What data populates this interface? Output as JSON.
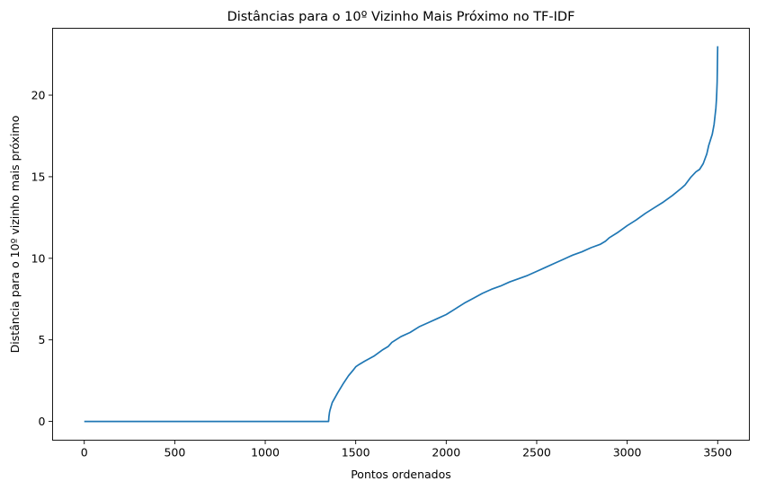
{
  "chart_data": {
    "type": "line",
    "title": "Distâncias para o 10º Vizinho Mais Próximo no TF-IDF",
    "xlabel": "Pontos ordenados",
    "ylabel": "Distância para o 10º vizinho mais próximo",
    "xlim": [
      -175,
      3675
    ],
    "ylim": [
      -1.15,
      24.1
    ],
    "xticks": [
      0,
      500,
      1000,
      1500,
      2000,
      2500,
      3000,
      3500
    ],
    "yticks": [
      0,
      5,
      10,
      15,
      20
    ],
    "grid": false,
    "series": [
      {
        "color": "#1f77b4",
        "x": [
          0,
          1350,
          1352,
          1355,
          1358,
          1362,
          1370,
          1380,
          1400,
          1430,
          1460,
          1490,
          1500,
          1520,
          1550,
          1600,
          1650,
          1680,
          1700,
          1750,
          1800,
          1850,
          1900,
          1950,
          2000,
          2050,
          2100,
          2150,
          2200,
          2250,
          2300,
          2350,
          2400,
          2450,
          2500,
          2550,
          2600,
          2650,
          2700,
          2750,
          2800,
          2850,
          2880,
          2900,
          2950,
          3000,
          3050,
          3100,
          3150,
          3200,
          3250,
          3300,
          3320,
          3350,
          3380,
          3400,
          3420,
          3440,
          3450,
          3460,
          3470,
          3480,
          3485,
          3490,
          3493,
          3495,
          3497,
          3498,
          3499,
          3500
        ],
        "y": [
          0,
          0,
          0.3,
          0.55,
          0.7,
          0.85,
          1.15,
          1.35,
          1.75,
          2.3,
          2.8,
          3.2,
          3.35,
          3.5,
          3.7,
          4.0,
          4.4,
          4.6,
          4.85,
          5.2,
          5.45,
          5.8,
          6.05,
          6.3,
          6.55,
          6.9,
          7.25,
          7.55,
          7.85,
          8.1,
          8.3,
          8.55,
          8.75,
          8.95,
          9.2,
          9.45,
          9.7,
          9.95,
          10.2,
          10.4,
          10.65,
          10.85,
          11.05,
          11.25,
          11.6,
          12.0,
          12.35,
          12.75,
          13.1,
          13.45,
          13.85,
          14.3,
          14.5,
          14.95,
          15.3,
          15.45,
          15.8,
          16.4,
          16.9,
          17.25,
          17.6,
          18.2,
          18.7,
          19.2,
          19.7,
          20.2,
          20.8,
          21.5,
          22.3,
          23.0
        ]
      }
    ]
  }
}
